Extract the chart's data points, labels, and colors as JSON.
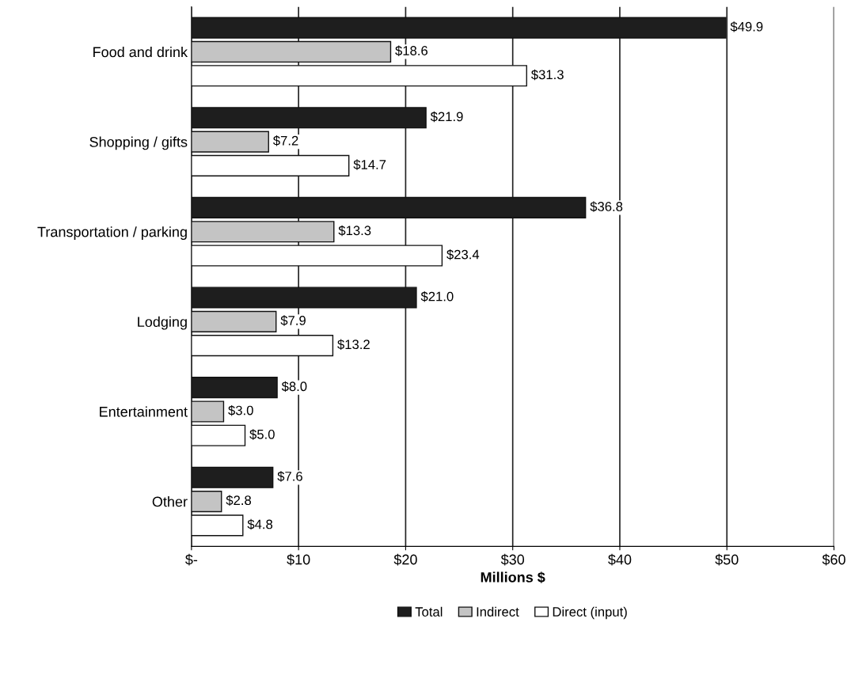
{
  "chart_data": {
    "type": "bar",
    "orientation": "horizontal",
    "xlabel": "Millions $",
    "categories": [
      "Food and drink",
      "Shopping / gifts",
      "Transportation / parking",
      "Lodging",
      "Entertainment",
      "Other"
    ],
    "series": [
      {
        "name": "Total",
        "color": "#1e1e1e",
        "values": [
          49.9,
          21.9,
          36.8,
          21.0,
          8.0,
          7.6
        ],
        "value_labels": [
          "$49.9",
          "$21.9",
          "$36.8",
          "$21.0",
          "$8.0",
          "$7.6"
        ]
      },
      {
        "name": "Indirect",
        "color": "#c4c4c4",
        "values": [
          18.6,
          7.2,
          13.3,
          7.9,
          3.0,
          2.8
        ],
        "value_labels": [
          "$18.6",
          "$7.2",
          "$13.3",
          "$7.9",
          "$3.0",
          "$2.8"
        ]
      },
      {
        "name": "Direct (input)",
        "color": "#ffffff",
        "values": [
          31.3,
          14.7,
          23.4,
          13.2,
          5.0,
          4.8
        ],
        "value_labels": [
          "$31.3",
          "$14.7",
          "$23.4",
          "$13.2",
          "$5.0",
          "$4.8"
        ]
      }
    ],
    "xlim": [
      0,
      60
    ],
    "xticks": [
      {
        "value": 0,
        "label": "$-"
      },
      {
        "value": 10,
        "label": "$10"
      },
      {
        "value": 20,
        "label": "$20"
      },
      {
        "value": 30,
        "label": "$30"
      },
      {
        "value": 40,
        "label": "$40"
      },
      {
        "value": 50,
        "label": "$50"
      },
      {
        "value": 60,
        "label": "$60"
      }
    ],
    "grid": "x",
    "legend": "bottom"
  }
}
